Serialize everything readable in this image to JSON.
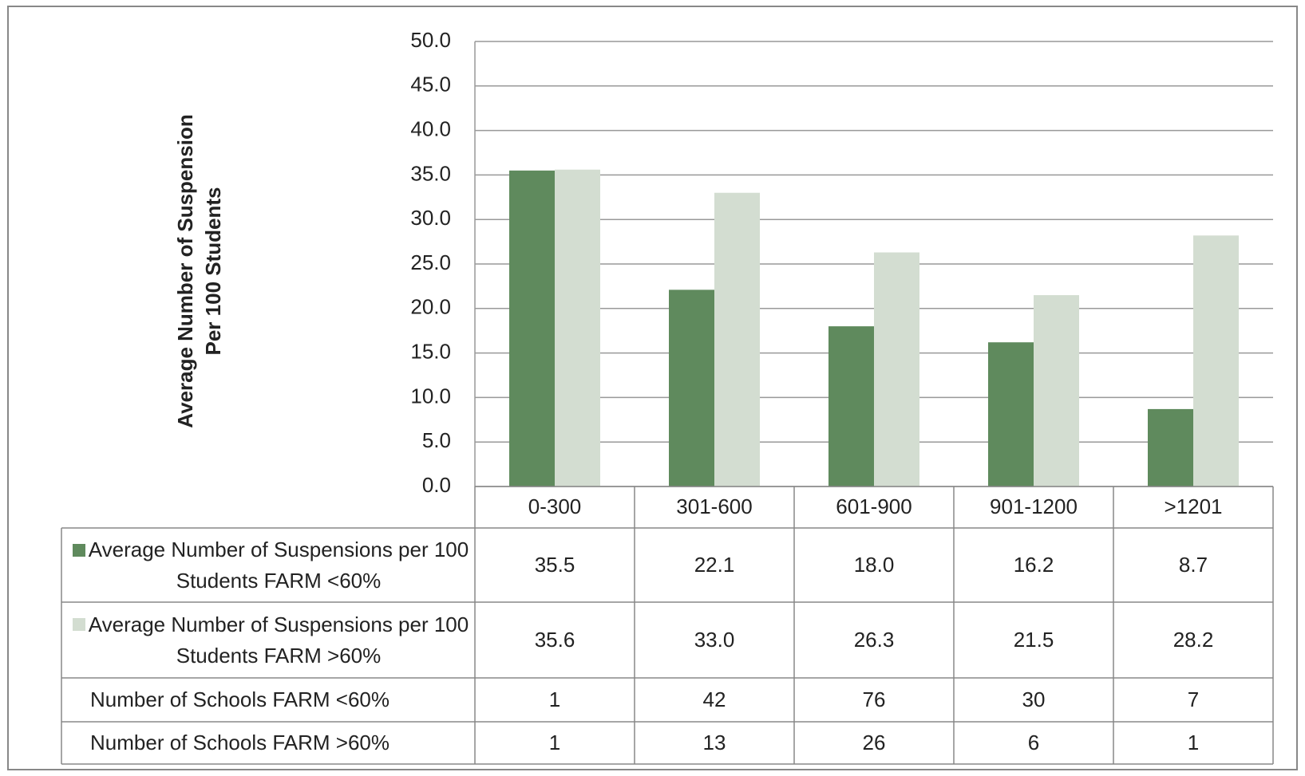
{
  "chart_data": {
    "type": "bar",
    "y_label": "Average Number of Suspension Per 100 Students",
    "categories": [
      "0-300",
      "301-600",
      "601-900",
      "901-1200",
      ">1201"
    ],
    "series": [
      {
        "name": "Average Number of Suspensions per 100 Students FARM <60%",
        "color": "#5f8a5d",
        "values": [
          35.5,
          22.1,
          18.0,
          16.2,
          8.7
        ],
        "value_labels": [
          "35.5",
          "22.1",
          "18.0",
          "16.2",
          "8.7"
        ]
      },
      {
        "name": "Average Number of Suspensions per 100 Students FARM >60%",
        "color": "#d3ddd1",
        "values": [
          35.6,
          33.0,
          26.3,
          21.5,
          28.2
        ],
        "value_labels": [
          "35.6",
          "33.0",
          "26.3",
          "21.5",
          "28.2"
        ]
      }
    ],
    "table_rows": [
      {
        "name": "Number of Schools FARM <60%",
        "values": [
          1,
          42,
          76,
          30,
          7
        ]
      },
      {
        "name": "Number of Schools FARM >60%",
        "values": [
          1,
          13,
          26,
          6,
          1
        ]
      }
    ],
    "ylim": [
      0,
      50
    ],
    "yticks": [
      {
        "value": 0,
        "label": "0.0"
      },
      {
        "value": 5,
        "label": "5.0"
      },
      {
        "value": 10,
        "label": "10.0"
      },
      {
        "value": 15,
        "label": "15.0"
      },
      {
        "value": 20,
        "label": "20.0"
      },
      {
        "value": 25,
        "label": "25.0"
      },
      {
        "value": 30,
        "label": "30.0"
      },
      {
        "value": 35,
        "label": "35.0"
      },
      {
        "value": 40,
        "label": "40.0"
      },
      {
        "value": 45,
        "label": "45.0"
      },
      {
        "value": 50,
        "label": "50.0"
      }
    ],
    "grid": true
  }
}
